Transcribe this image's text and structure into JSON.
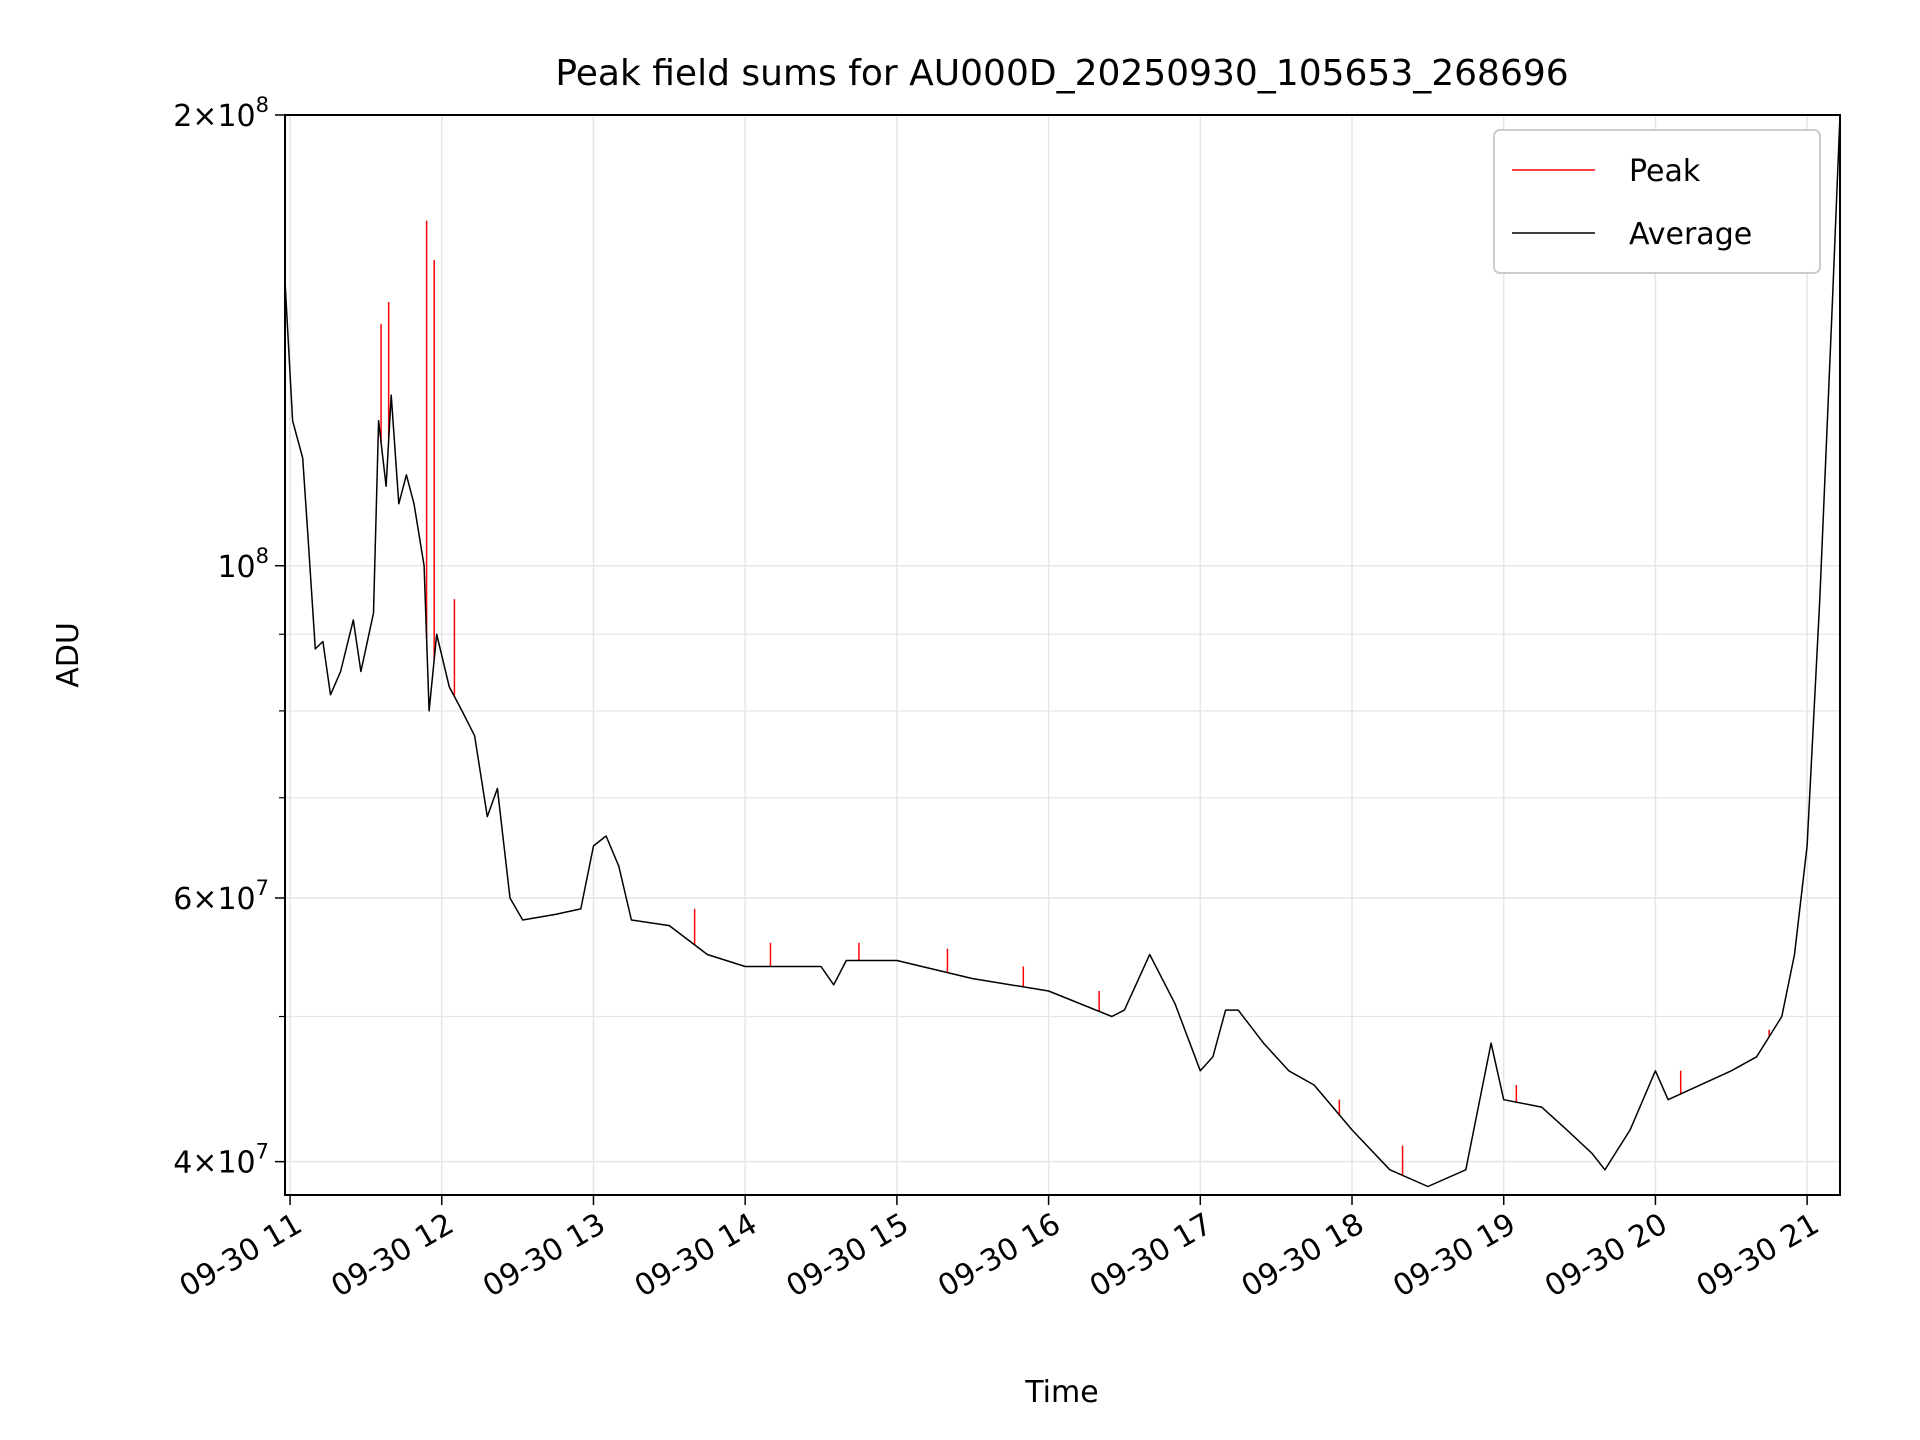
{
  "chart_data": {
    "type": "line",
    "title": "Peak field sums for AU000D_20250930_105653_268696",
    "xlabel": "Time",
    "ylabel": "ADU",
    "yscale": "log",
    "grid": true,
    "legend_position": "top-right",
    "xlim": [
      "2025-09-30 10:58",
      "2025-09-30 21:13"
    ],
    "ylim": [
      38000000,
      200000000
    ],
    "x_ticks": [
      {
        "value": "2025-09-30 11:00",
        "label": "09-30 11"
      },
      {
        "value": "2025-09-30 12:00",
        "label": "09-30 12"
      },
      {
        "value": "2025-09-30 13:00",
        "label": "09-30 13"
      },
      {
        "value": "2025-09-30 14:00",
        "label": "09-30 14"
      },
      {
        "value": "2025-09-30 15:00",
        "label": "09-30 15"
      },
      {
        "value": "2025-09-30 16:00",
        "label": "09-30 16"
      },
      {
        "value": "2025-09-30 17:00",
        "label": "09-30 17"
      },
      {
        "value": "2025-09-30 18:00",
        "label": "09-30 18"
      },
      {
        "value": "2025-09-30 19:00",
        "label": "09-30 19"
      },
      {
        "value": "2025-09-30 20:00",
        "label": "09-30 20"
      },
      {
        "value": "2025-09-30 21:00",
        "label": "09-30 21"
      }
    ],
    "y_ticks_major": [
      {
        "value": 40000000,
        "mantissa": "4",
        "exponent": "7"
      },
      {
        "value": 60000000,
        "mantissa": "6",
        "exponent": "7"
      },
      {
        "value": 100000000,
        "mantissa": "",
        "exponent": "8"
      },
      {
        "value": 200000000,
        "mantissa": "2",
        "exponent": "8"
      }
    ],
    "y_ticks_minor": [
      50000000,
      70000000,
      80000000,
      90000000
    ],
    "colors": {
      "peak": "#ff0000",
      "average": "#000000",
      "grid": "#e6e6e6"
    },
    "series": [
      {
        "name": "Average",
        "color": "#000000",
        "points": [
          [
            "2025-09-30 10:58",
            155000000.0
          ],
          [
            "2025-09-30 11:01",
            125000000.0
          ],
          [
            "2025-09-30 11:05",
            118000000.0
          ],
          [
            "2025-09-30 11:07",
            105000000.0
          ],
          [
            "2025-09-30 11:10",
            88000000.0
          ],
          [
            "2025-09-30 11:13",
            89000000.0
          ],
          [
            "2025-09-30 11:16",
            82000000.0
          ],
          [
            "2025-09-30 11:20",
            85000000.0
          ],
          [
            "2025-09-30 11:25",
            92000000.0
          ],
          [
            "2025-09-30 11:28",
            85000000.0
          ],
          [
            "2025-09-30 11:33",
            93000000.0
          ],
          [
            "2025-09-30 11:35",
            125000000.0
          ],
          [
            "2025-09-30 11:38",
            113000000.0
          ],
          [
            "2025-09-30 11:40",
            130000000.0
          ],
          [
            "2025-09-30 11:43",
            110000000.0
          ],
          [
            "2025-09-30 11:46",
            115000000.0
          ],
          [
            "2025-09-30 11:49",
            110000000.0
          ],
          [
            "2025-09-30 11:53",
            100000000.0
          ],
          [
            "2025-09-30 11:55",
            80000000.0
          ],
          [
            "2025-09-30 11:58",
            90000000.0
          ],
          [
            "2025-09-30 12:03",
            83000000.0
          ],
          [
            "2025-09-30 12:08",
            80000000.0
          ],
          [
            "2025-09-30 12:13",
            77000000.0
          ],
          [
            "2025-09-30 12:18",
            68000000.0
          ],
          [
            "2025-09-30 12:22",
            71000000.0
          ],
          [
            "2025-09-30 12:27",
            60000000.0
          ],
          [
            "2025-09-30 12:32",
            58000000.0
          ],
          [
            "2025-09-30 12:45",
            58500000.0
          ],
          [
            "2025-09-30 12:55",
            59000000.0
          ],
          [
            "2025-09-30 13:00",
            65000000.0
          ],
          [
            "2025-09-30 13:05",
            66000000.0
          ],
          [
            "2025-09-30 13:10",
            63000000.0
          ],
          [
            "2025-09-30 13:15",
            58000000.0
          ],
          [
            "2025-09-30 13:30",
            57500000.0
          ],
          [
            "2025-09-30 13:45",
            55000000.0
          ],
          [
            "2025-09-30 14:00",
            54000000.0
          ],
          [
            "2025-09-30 14:30",
            54000000.0
          ],
          [
            "2025-09-30 14:35",
            52500000.0
          ],
          [
            "2025-09-30 14:40",
            54500000.0
          ],
          [
            "2025-09-30 15:00",
            54500000.0
          ],
          [
            "2025-09-30 15:30",
            53000000.0
          ],
          [
            "2025-09-30 16:00",
            52000000.0
          ],
          [
            "2025-09-30 16:25",
            50000000.0
          ],
          [
            "2025-09-30 16:30",
            50500000.0
          ],
          [
            "2025-09-30 16:40",
            55000000.0
          ],
          [
            "2025-09-30 16:50",
            51000000.0
          ],
          [
            "2025-09-30 17:00",
            46000000.0
          ],
          [
            "2025-09-30 17:05",
            47000000.0
          ],
          [
            "2025-09-30 17:10",
            50500000.0
          ],
          [
            "2025-09-30 17:15",
            50500000.0
          ],
          [
            "2025-09-30 17:25",
            48000000.0
          ],
          [
            "2025-09-30 17:35",
            46000000.0
          ],
          [
            "2025-09-30 17:45",
            45000000.0
          ],
          [
            "2025-09-30 18:00",
            42000000.0
          ],
          [
            "2025-09-30 18:15",
            39500000.0
          ],
          [
            "2025-09-30 18:30",
            38500000.0
          ],
          [
            "2025-09-30 18:45",
            39500000.0
          ],
          [
            "2025-09-30 18:55",
            48000000.0
          ],
          [
            "2025-09-30 19:00",
            44000000.0
          ],
          [
            "2025-09-30 19:15",
            43500000.0
          ],
          [
            "2025-09-30 19:25",
            42000000.0
          ],
          [
            "2025-09-30 19:35",
            40500000.0
          ],
          [
            "2025-09-30 19:40",
            39500000.0
          ],
          [
            "2025-09-30 19:50",
            42000000.0
          ],
          [
            "2025-09-30 20:00",
            46000000.0
          ],
          [
            "2025-09-30 20:05",
            44000000.0
          ],
          [
            "2025-09-30 20:30",
            46000000.0
          ],
          [
            "2025-09-30 20:40",
            47000000.0
          ],
          [
            "2025-09-30 20:50",
            50000000.0
          ],
          [
            "2025-09-30 20:55",
            55000000.0
          ],
          [
            "2025-09-30 21:00",
            65000000.0
          ],
          [
            "2025-09-30 21:05",
            95000000.0
          ],
          [
            "2025-09-30 21:10",
            150000000.0
          ],
          [
            "2025-09-30 21:13",
            200000000.0
          ]
        ]
      },
      {
        "name": "Peak",
        "color": "#ff0000",
        "points": [
          [
            "2025-09-30 11:36",
            145000000.0
          ],
          [
            "2025-09-30 11:39",
            150000000.0
          ],
          [
            "2025-09-30 11:54",
            170000000.0
          ],
          [
            "2025-09-30 11:57",
            160000000.0
          ],
          [
            "2025-09-30 12:05",
            95000000.0
          ],
          [
            "2025-09-30 13:40",
            59000000.0
          ],
          [
            "2025-09-30 14:10",
            56000000.0
          ],
          [
            "2025-09-30 14:45",
            56000000.0
          ],
          [
            "2025-09-30 15:20",
            55500000.0
          ],
          [
            "2025-09-30 15:50",
            54000000.0
          ],
          [
            "2025-09-30 16:20",
            52000000.0
          ],
          [
            "2025-09-30 17:55",
            44000000.0
          ],
          [
            "2025-09-30 18:20",
            41000000.0
          ],
          [
            "2025-09-30 19:05",
            45000000.0
          ],
          [
            "2025-09-30 20:10",
            46000000.0
          ],
          [
            "2025-09-30 20:45",
            49000000.0
          ]
        ]
      }
    ]
  }
}
